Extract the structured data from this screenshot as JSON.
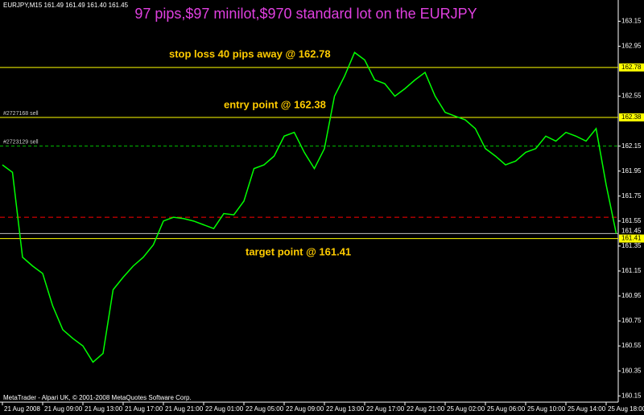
{
  "chart_data": {
    "type": "line",
    "title": "97 pips,$97 minilot,$970 standard lot on the EURJPY",
    "header": "EURJPY,M15 161.49 161.49 161.40 161.45",
    "footer": "MetaTrader - Alpari UK, © 2001-2008 MetaQuotes Software Corp.",
    "annotations": [
      "stop loss 40 pips away @ 162.78",
      "entry point @ 162.38",
      "target point @ 161.41"
    ],
    "categories": [
      "21 Aug 2008",
      null,
      null,
      null,
      "21 Aug 09:00",
      null,
      null,
      null,
      "21 Aug 13:00",
      null,
      null,
      null,
      "21 Aug 17:00",
      null,
      null,
      null,
      "21 Aug 21:00",
      null,
      null,
      null,
      "22 Aug 01:00",
      null,
      null,
      null,
      "22 Aug 05:00",
      null,
      null,
      null,
      "22 Aug 09:00",
      null,
      null,
      null,
      "22 Aug 13:00",
      null,
      null,
      null,
      "22 Aug 17:00",
      null,
      null,
      null,
      "22 Aug 21:00",
      null,
      null,
      null,
      "25 Aug 02:00",
      null,
      null,
      null,
      "25 Aug 06:00",
      null,
      null,
      null,
      "25 Aug 10:00",
      null,
      null,
      null,
      "25 Aug 14:00",
      null,
      null,
      null,
      "25 Aug 18:00",
      null
    ],
    "series": [
      {
        "name": "EURJPY,M15",
        "color": "#00ff00",
        "values": [
          162.0,
          161.94,
          161.26,
          161.19,
          161.13,
          160.87,
          160.68,
          160.61,
          160.55,
          160.42,
          160.49,
          161.0,
          161.1,
          161.19,
          161.26,
          161.36,
          161.55,
          161.58,
          161.57,
          161.55,
          161.52,
          161.49,
          161.61,
          161.6,
          161.71,
          161.97,
          162.0,
          162.07,
          162.23,
          162.26,
          162.1,
          161.97,
          162.13,
          162.55,
          162.71,
          162.9,
          162.84,
          162.68,
          162.65,
          162.55,
          162.61,
          162.68,
          162.74,
          162.55,
          162.42,
          162.39,
          162.36,
          162.29,
          162.13,
          162.07,
          162.0,
          162.03,
          162.1,
          162.13,
          162.23,
          162.19,
          162.26,
          162.23,
          162.19,
          162.29,
          161.84,
          161.45
        ]
      }
    ],
    "ylim": [
      160.1,
      163.32
    ],
    "yticks": [
      160.15,
      160.35,
      160.55,
      160.75,
      160.95,
      161.15,
      161.35,
      161.55,
      161.75,
      161.95,
      162.15,
      162.55,
      162.95,
      163.15
    ],
    "levels": [
      {
        "value": 162.78,
        "color": "#ffff00",
        "style": "solid",
        "box": true
      },
      {
        "value": 162.38,
        "color": "#ffff00",
        "style": "solid",
        "box": true
      },
      {
        "value": 161.58,
        "color": "#ff0000",
        "style": "dashed",
        "box": false
      },
      {
        "value": 161.45,
        "color": "#c0c0c0",
        "style": "solid",
        "box": false
      },
      {
        "value": 161.41,
        "color": "#ffff00",
        "style": "solid",
        "box": true
      }
    ],
    "orders": [
      {
        "label": "#2727168 sell",
        "value": 162.38,
        "color": "#00c000"
      },
      {
        "label": "#2723129 sell",
        "value": 162.15,
        "color": "#00c000"
      }
    ]
  }
}
